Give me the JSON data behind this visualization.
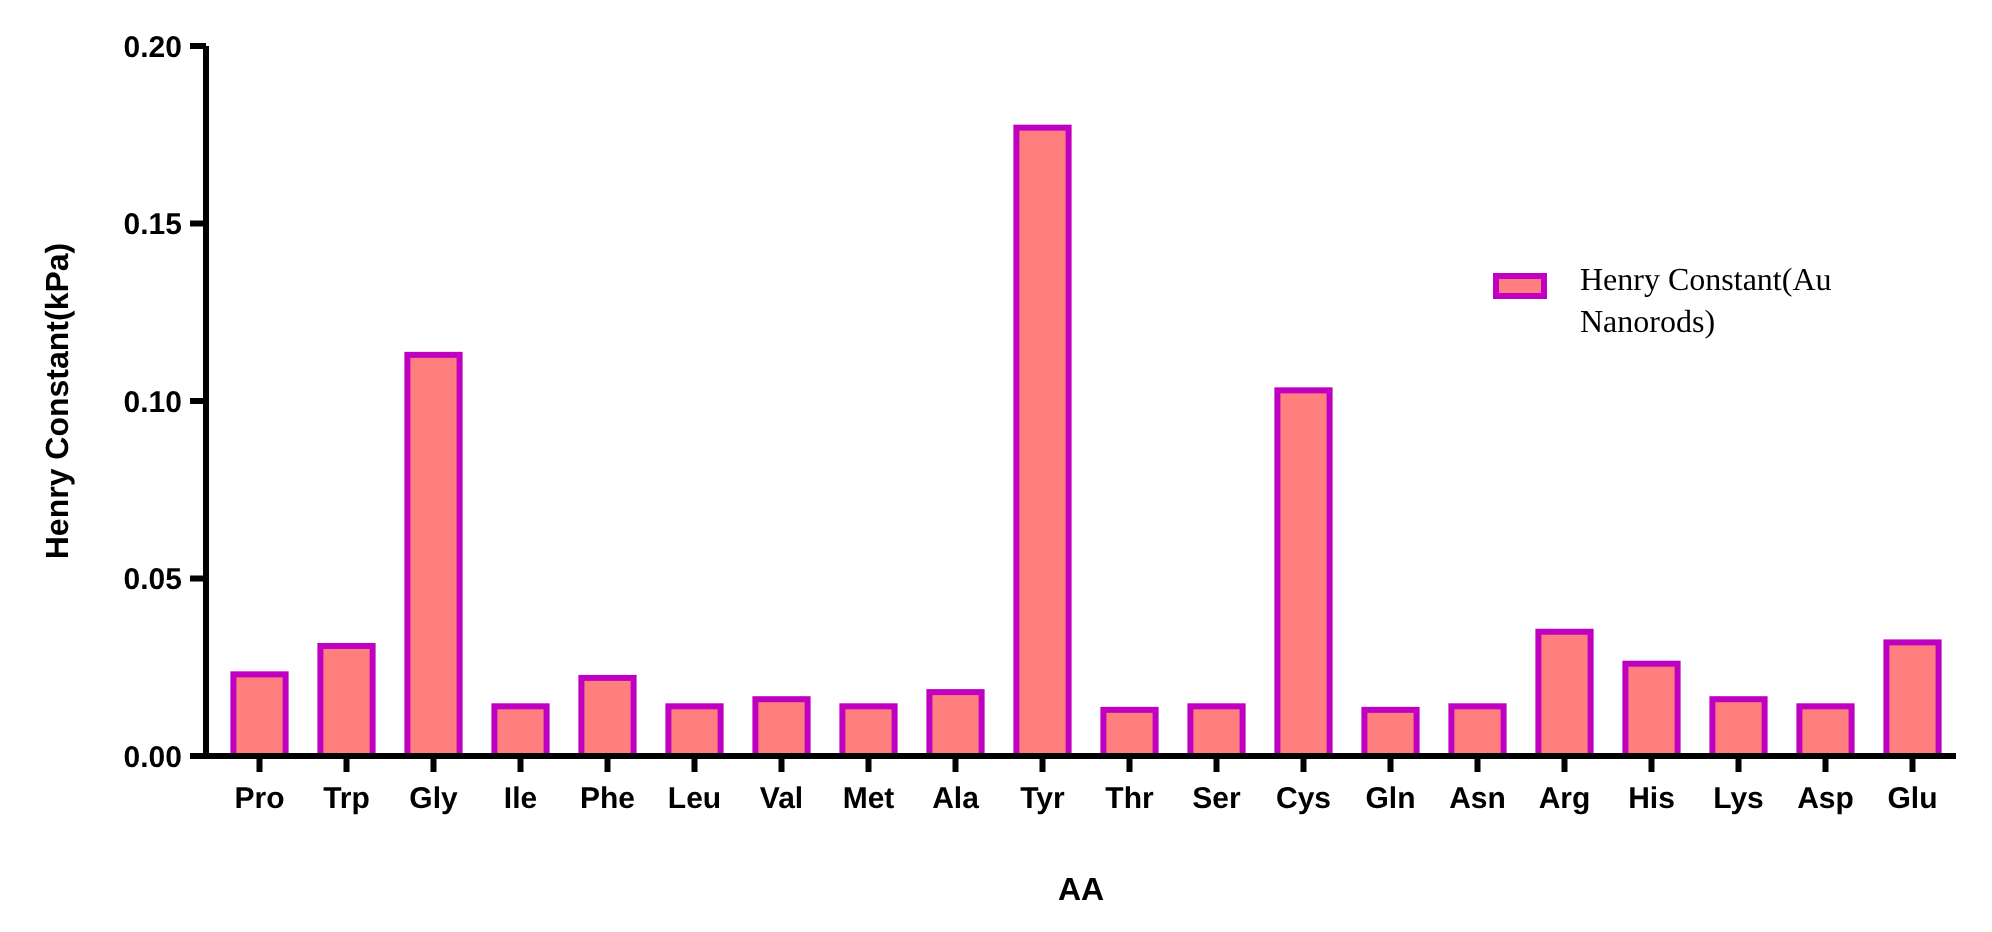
{
  "chart_data": {
    "type": "bar",
    "xlabel": "AA",
    "ylabel": "Henry Constant(kPa)",
    "categories": [
      "Pro",
      "Trp",
      "Gly",
      "Ile",
      "Phe",
      "Leu",
      "Val",
      "Met",
      "Ala",
      "Tyr",
      "Thr",
      "Ser",
      "Cys",
      "Gln",
      "Asn",
      "Arg",
      "His",
      "Lys",
      "Asp",
      "Glu"
    ],
    "series": [
      {
        "name": "Henry Constant(Au Nanorods)",
        "color": "#ff7f7f",
        "values": [
          0.023,
          0.031,
          0.113,
          0.014,
          0.022,
          0.014,
          0.016,
          0.014,
          0.018,
          0.177,
          0.013,
          0.014,
          0.103,
          0.013,
          0.014,
          0.035,
          0.026,
          0.016,
          0.014,
          0.032
        ]
      }
    ],
    "ylim": [
      0,
      0.2
    ],
    "yticks": [
      {
        "value": 0,
        "label": "0.00"
      },
      {
        "value": 0.05,
        "label": "0.05"
      },
      {
        "value": 0.1,
        "label": "0.10"
      },
      {
        "value": 0.15,
        "label": "0.15"
      },
      {
        "value": 0.2,
        "label": "0.20"
      }
    ],
    "legend": "right",
    "grid": false
  }
}
